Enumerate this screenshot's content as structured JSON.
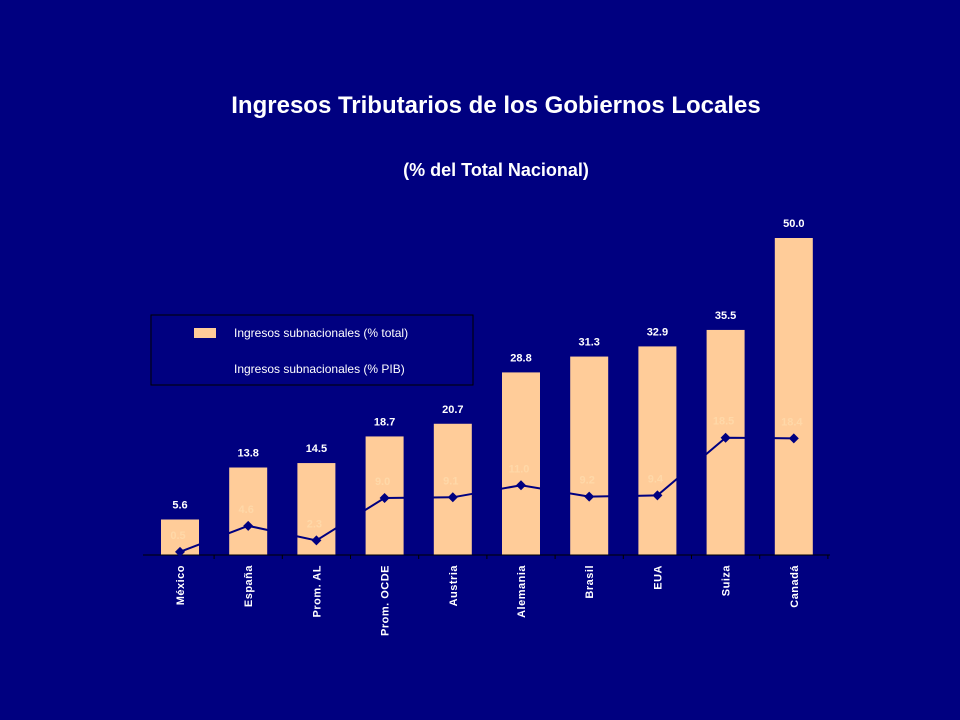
{
  "chart_data": {
    "type": "bar",
    "title": "Ingresos Tributarios de los Gobiernos Locales",
    "subtitle": "(% del Total Nacional)",
    "categories": [
      "México",
      "España",
      "Prom. AL",
      "Prom. OCDE",
      "Austria",
      "Alemania",
      "Brasil",
      "EUA",
      "Suiza",
      "Canadá"
    ],
    "series": [
      {
        "name": "Ingresos subnacionales (% total)",
        "type": "bar",
        "values": [
          5.6,
          13.8,
          14.5,
          18.7,
          20.7,
          28.8,
          31.3,
          32.9,
          35.5,
          50.0
        ],
        "labels": [
          "5.6",
          "13.8",
          "14.5",
          "18.7",
          "20.7",
          "28.8",
          "31.3",
          "32.9",
          "35.5",
          "50.0"
        ]
      },
      {
        "name": "Ingresos subnacionales (% PIB)",
        "type": "line",
        "values": [
          0.5,
          4.6,
          2.3,
          9.0,
          9.1,
          11.0,
          9.2,
          9.4,
          18.5,
          18.4
        ],
        "labels": [
          "0.5",
          "4.6",
          "2.3",
          "9.0",
          "9.1",
          "11.0",
          "9.2",
          "9.4",
          "18.5",
          "18.4"
        ]
      }
    ],
    "ylim": [
      0,
      50
    ],
    "legend_position": "left",
    "colors": {
      "bar": "#FFCC99",
      "line": "#000080",
      "background": "#000080",
      "text": "#FFFFFF",
      "pib_label": "#FFD8A8"
    }
  }
}
